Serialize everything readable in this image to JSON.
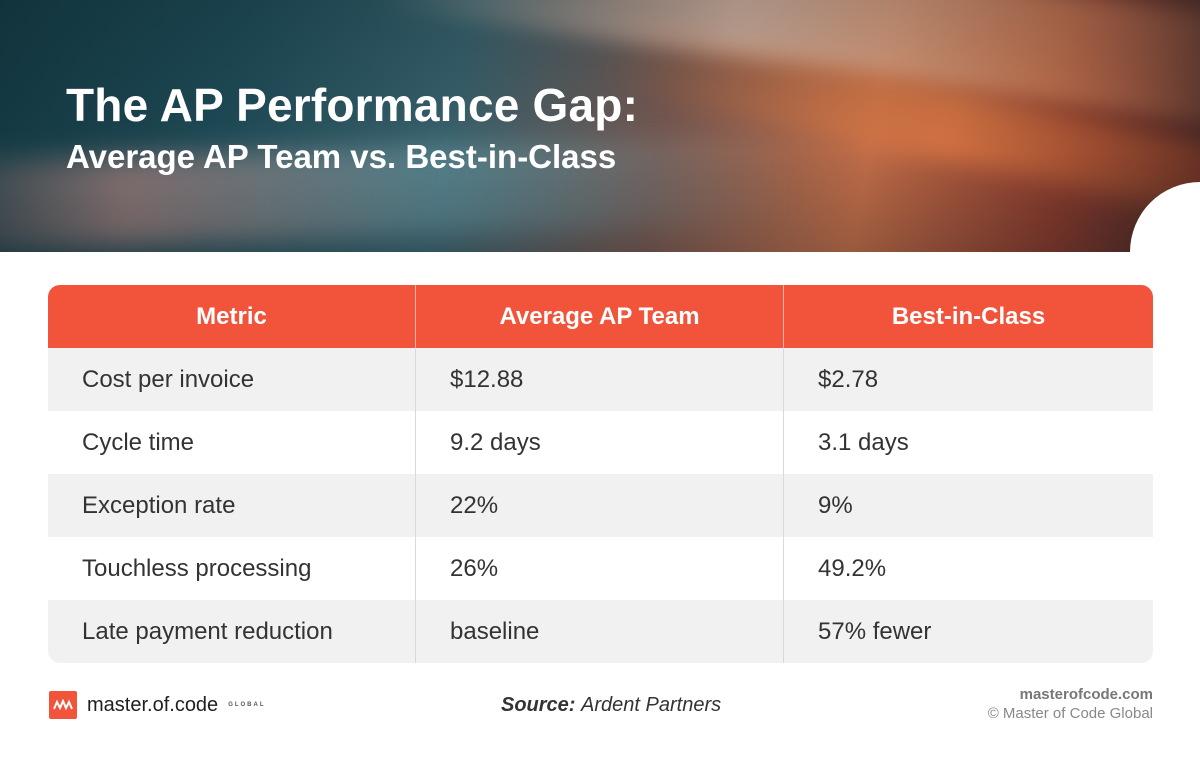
{
  "header": {
    "title": "The AP Performance Gap:",
    "subtitle": "Average AP Team vs. Best-in-Class"
  },
  "table": {
    "columns": [
      "Metric",
      "Average AP Team",
      "Best-in-Class"
    ],
    "rows": [
      [
        "Cost per invoice",
        "$12.88",
        "$2.78"
      ],
      [
        "Cycle time",
        "9.2 days",
        "3.1 days"
      ],
      [
        "Exception rate",
        "22%",
        "9%"
      ],
      [
        "Touchless processing",
        "26%",
        "49.2%"
      ],
      [
        "Late payment reduction",
        "baseline",
        "57% fewer"
      ]
    ]
  },
  "footer": {
    "logo_text": "master.of.code",
    "logo_sub": "GLOBAL",
    "logo_icon": "master-of-code-logo-icon",
    "source_label": "Source:",
    "source_value": "Ardent Partners",
    "site": "masterofcode.com",
    "copyright": "© Master of Code Global"
  },
  "colors": {
    "accent": "#f1533b",
    "row_alt": "#f1f1f1"
  }
}
